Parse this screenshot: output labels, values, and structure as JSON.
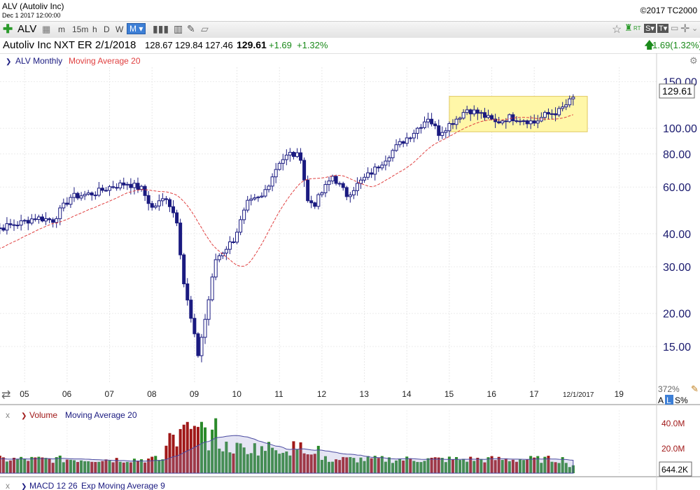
{
  "header": {
    "window_title": "ALV (Autoliv Inc)",
    "subtitle": "Dec 1 2017 12:00:00",
    "copyright": "©2017 TC2000"
  },
  "toolbar": {
    "symbol": "ALV",
    "timeframes": [
      "m",
      "15m",
      "h",
      "D",
      "W",
      "M"
    ],
    "active_timeframe": "M",
    "rt_label": "RT",
    "s_label": "S",
    "t_label": "T"
  },
  "quote": {
    "name": "Autoliv Inc",
    "next_earnings": "NXT ER 2/1/2018",
    "open": "128.67",
    "high": "129.84",
    "low": "127.46",
    "last": "129.61",
    "change": "+1.69",
    "change_pct": "+1.32%",
    "right_change": "1.69(1.32%)"
  },
  "colors": {
    "candle": "#1a1a80",
    "ma": "#e04040",
    "highlight": "#fff7a8",
    "vol_up": "#2a8a2a",
    "vol_down": "#a01818",
    "up_text": "#1a8a1a"
  },
  "chart_data": [
    {
      "type": "candlestick",
      "legend": {
        "series": "ALV Monthly",
        "indicator": "Moving Average 20"
      },
      "y_scale": "log",
      "ylim": [
        11,
        160
      ],
      "yticks": [
        "150.00",
        "100.00",
        "80.00",
        "60.00",
        "40.00",
        "30.00",
        "20.00",
        "15.00"
      ],
      "last_price_label": "129.61",
      "x_labels": [
        "05",
        "06",
        "07",
        "08",
        "09",
        "10",
        "11",
        "12",
        "13",
        "14",
        "15",
        "16",
        "17",
        "19"
      ],
      "cursor_date": "12/1/2017",
      "percent_label": "372%",
      "scale_buttons": [
        "A",
        "L",
        "S%"
      ],
      "anchors": [
        [
          "2004-01",
          43
        ],
        [
          "2004-06",
          42
        ],
        [
          "2004-12",
          44
        ],
        [
          "2005-04",
          46
        ],
        [
          "2005-09",
          45
        ],
        [
          "2006-02",
          55
        ],
        [
          "2006-09",
          57
        ],
        [
          "2007-01",
          60
        ],
        [
          "2007-06",
          62
        ],
        [
          "2007-10",
          59
        ],
        [
          "2008-01",
          50
        ],
        [
          "2008-05",
          55
        ],
        [
          "2008-08",
          45
        ],
        [
          "2008-10",
          26
        ],
        [
          "2008-12",
          19
        ],
        [
          "2009-02",
          14
        ],
        [
          "2009-04",
          19
        ],
        [
          "2009-07",
          32
        ],
        [
          "2009-12",
          38
        ],
        [
          "2010-04",
          52
        ],
        [
          "2010-08",
          55
        ],
        [
          "2011-01",
          75
        ],
        [
          "2011-04",
          80
        ],
        [
          "2011-07",
          78
        ],
        [
          "2011-09",
          53
        ],
        [
          "2011-11",
          52
        ],
        [
          "2012-04",
          66
        ],
        [
          "2012-08",
          56
        ],
        [
          "2012-12",
          63
        ],
        [
          "2013-04",
          70
        ],
        [
          "2013-10",
          85
        ],
        [
          "2014-03",
          97
        ],
        [
          "2014-07",
          110
        ],
        [
          "2014-10",
          96
        ],
        [
          "2015-02",
          106
        ],
        [
          "2015-06",
          118
        ],
        [
          "2015-10",
          113
        ],
        [
          "2016-02",
          105
        ],
        [
          "2016-06",
          110
        ],
        [
          "2016-10",
          108
        ],
        [
          "2017-01",
          105
        ],
        [
          "2017-04",
          112
        ],
        [
          "2017-08",
          116
        ],
        [
          "2017-12",
          129.61
        ]
      ],
      "highlight_range": {
        "start": "2015-01",
        "end": "2018-04",
        "low": 97,
        "high": 132
      }
    },
    {
      "type": "bar",
      "legend": {
        "series": "Volume",
        "indicator": "Moving Average 20"
      },
      "ylim": [
        0,
        50
      ],
      "yticks": [
        "40.0M",
        "20.0M"
      ],
      "last_value_label": "644.2K",
      "unit": "M"
    }
  ],
  "macd": {
    "legend_series": "MACD 12 26",
    "legend_indicator": "Exp Moving Average 9"
  }
}
